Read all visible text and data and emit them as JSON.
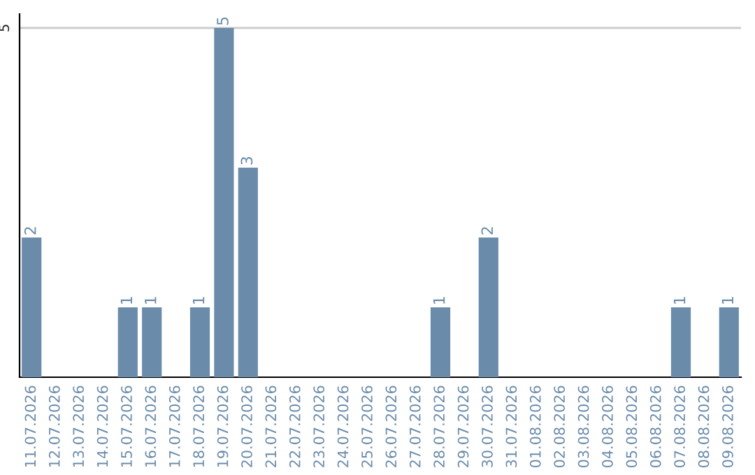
{
  "chart_data": {
    "type": "bar",
    "categories": [
      "11.07.2026",
      "12.07.2026",
      "13.07.2026",
      "14.07.2026",
      "15.07.2026",
      "16.07.2026",
      "17.07.2026",
      "18.07.2026",
      "19.07.2026",
      "20.07.2026",
      "21.07.2026",
      "22.07.2026",
      "23.07.2026",
      "24.07.2026",
      "25.07.2026",
      "26.07.2026",
      "27.07.2026",
      "28.07.2026",
      "29.07.2026",
      "30.07.2026",
      "31.07.2026",
      "01.08.2026",
      "02.08.2026",
      "03.08.2026",
      "04.08.2026",
      "05.08.2026",
      "06.08.2026",
      "07.08.2026",
      "08.08.2026",
      "09.08.2026"
    ],
    "values": [
      2,
      0,
      0,
      0,
      1,
      1,
      0,
      1,
      5,
      3,
      0,
      0,
      0,
      0,
      0,
      0,
      0,
      1,
      0,
      2,
      0,
      0,
      0,
      0,
      0,
      0,
      0,
      1,
      0,
      1
    ],
    "value_labels": [
      "2",
      null,
      null,
      null,
      "1",
      "1",
      null,
      "1",
      "5",
      "3",
      null,
      null,
      null,
      null,
      null,
      null,
      null,
      "1",
      null,
      "2",
      null,
      null,
      null,
      null,
      null,
      null,
      null,
      "1",
      null,
      "1"
    ],
    "color": "#6a8caa",
    "ylim": [
      0,
      5.2
    ],
    "yticks": [
      5
    ],
    "grid": "y"
  }
}
